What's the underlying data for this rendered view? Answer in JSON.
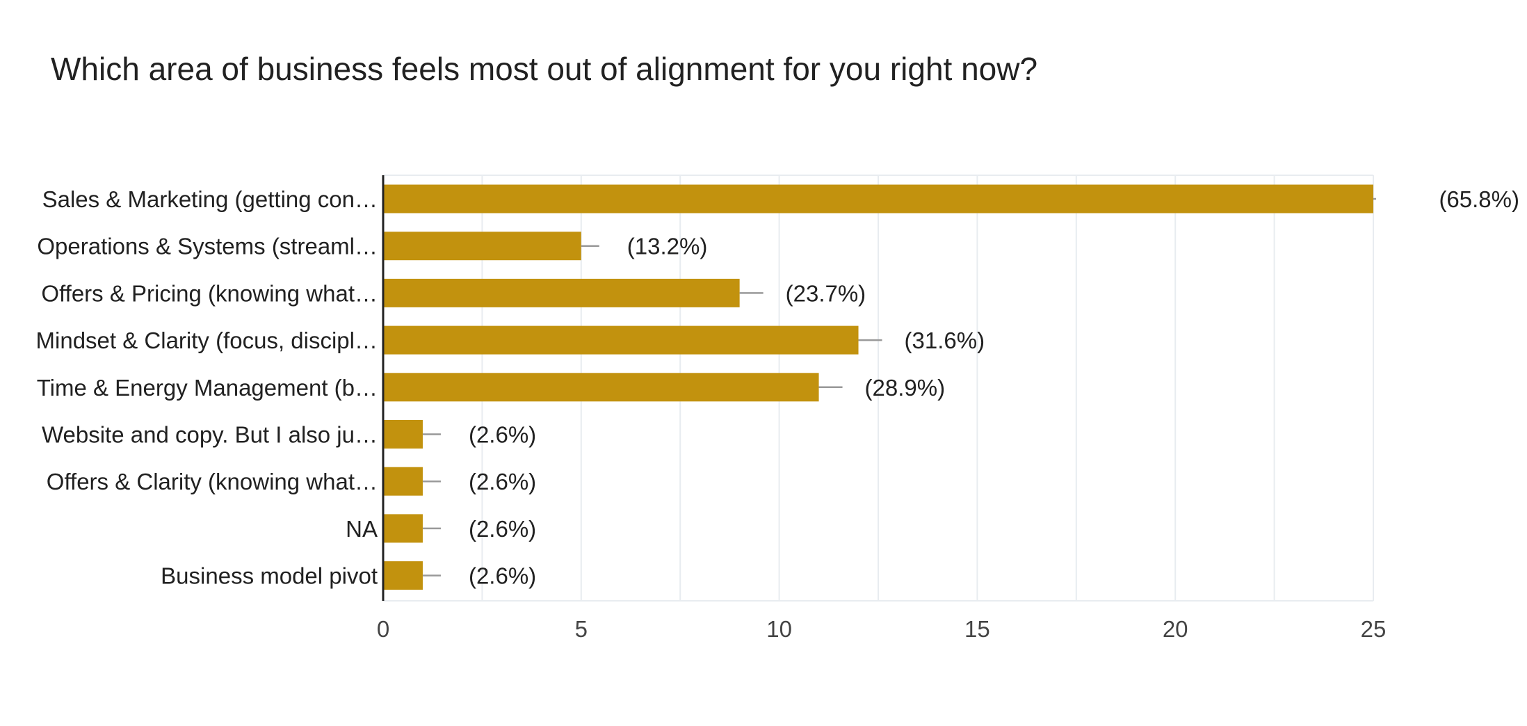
{
  "chart_data": {
    "type": "bar",
    "orientation": "horizontal",
    "title": "Which area of business feels most out of alignment for you right now?",
    "categories": [
      "Sales & Marketing (getting con…",
      "Operations & Systems (streaml…",
      "Offers & Pricing (knowing what…",
      "Mindset & Clarity (focus, discipl…",
      "Time & Energy Management (b…",
      "Website and copy. But I also ju…",
      "Offers & Clarity (knowing what…",
      "NA",
      "Business model pivot"
    ],
    "values": [
      25,
      5,
      9,
      12,
      11,
      1,
      1,
      1,
      1
    ],
    "data_labels": [
      "(65.8%)",
      "(13.2%)",
      "(23.7%)",
      "(31.6%)",
      "(28.9%)",
      "(2.6%)",
      "(2.6%)",
      "(2.6%)",
      "(2.6%)"
    ],
    "xlim": [
      0,
      25
    ],
    "x_ticks": [
      "0",
      "5",
      "10",
      "15",
      "20",
      "25"
    ],
    "grid": true,
    "colors": {
      "bar": "#c2920e",
      "axis": "#212121",
      "grid": "#e8ecf0",
      "tick_text": "#444444",
      "category_text": "#212121",
      "label_text": "#212121",
      "connector": "#999999"
    }
  }
}
